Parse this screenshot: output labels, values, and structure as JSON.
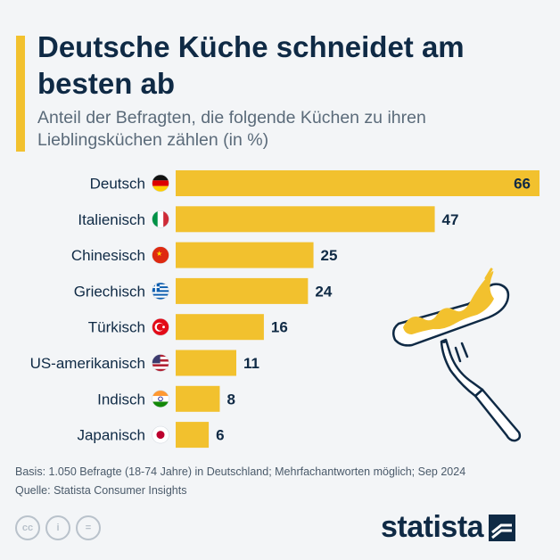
{
  "title": "Deutsche Küche schneidet am besten ab",
  "subtitle": "Anteil der Befragten, die folgende Küchen zu ihren Lieblingsküchen zählen (in %)",
  "chart_data": {
    "type": "bar",
    "orientation": "horizontal",
    "categories": [
      "Deutsch",
      "Italienisch",
      "Chinesisch",
      "Griechisch",
      "Türkisch",
      "US-amerikanisch",
      "Indisch",
      "Japanisch"
    ],
    "flags": [
      "germany-flag-icon",
      "italy-flag-icon",
      "china-flag-icon",
      "greece-flag-icon",
      "turkey-flag-icon",
      "usa-flag-icon",
      "india-flag-icon",
      "japan-flag-icon"
    ],
    "values": [
      66,
      47,
      25,
      24,
      16,
      11,
      8,
      6
    ],
    "xlim": [
      0,
      66
    ],
    "bar_color": "#f2c12e",
    "grid": false,
    "legend": "none"
  },
  "footer": {
    "basis": "Basis: 1.050 Befragte (18-74 Jahre) in Deutschland; Mehrfachantworten möglich; Sep 2024",
    "source": "Quelle: Statista Consumer Insights"
  },
  "license_icons": [
    "cc-icon",
    "person-icon",
    "equals-icon"
  ],
  "license_glyphs": [
    "cc",
    "i",
    "="
  ],
  "brand": "statista",
  "colors": {
    "accent": "#f2c12e",
    "navy": "#0f2a45",
    "muted": "#5b6b7a",
    "background": "#f3f5f7"
  }
}
